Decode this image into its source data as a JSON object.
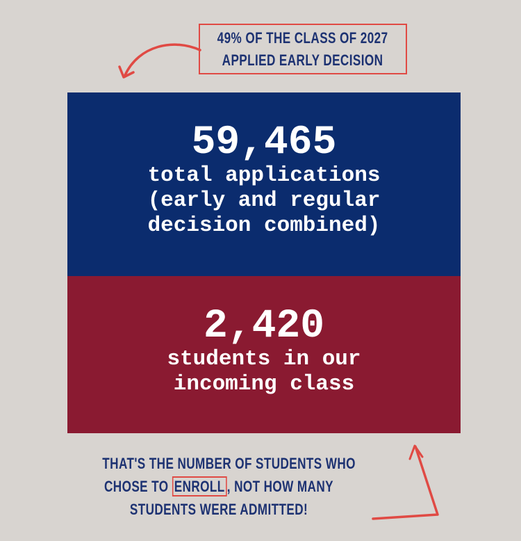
{
  "callout": {
    "lines": [
      "49% of the class of 2027",
      "applied early decision"
    ]
  },
  "applications": {
    "number": "59,465",
    "lines": [
      "total applications",
      "(early and regular",
      "decision combined)"
    ]
  },
  "enrollment": {
    "number": "2,420",
    "lines": [
      "students in our",
      "incoming class"
    ]
  },
  "note": {
    "line1": "That's the number of students who",
    "line2_before": "chose to ",
    "line2_highlight": "enroll",
    "line2_after": ", not how many",
    "line3": "students were admitted!"
  },
  "colors": {
    "background": "#d8d4d0",
    "blue": "#0b2c6e",
    "red": "#8a1a31",
    "accent": "#e04a44",
    "ink": "#1d3272"
  }
}
